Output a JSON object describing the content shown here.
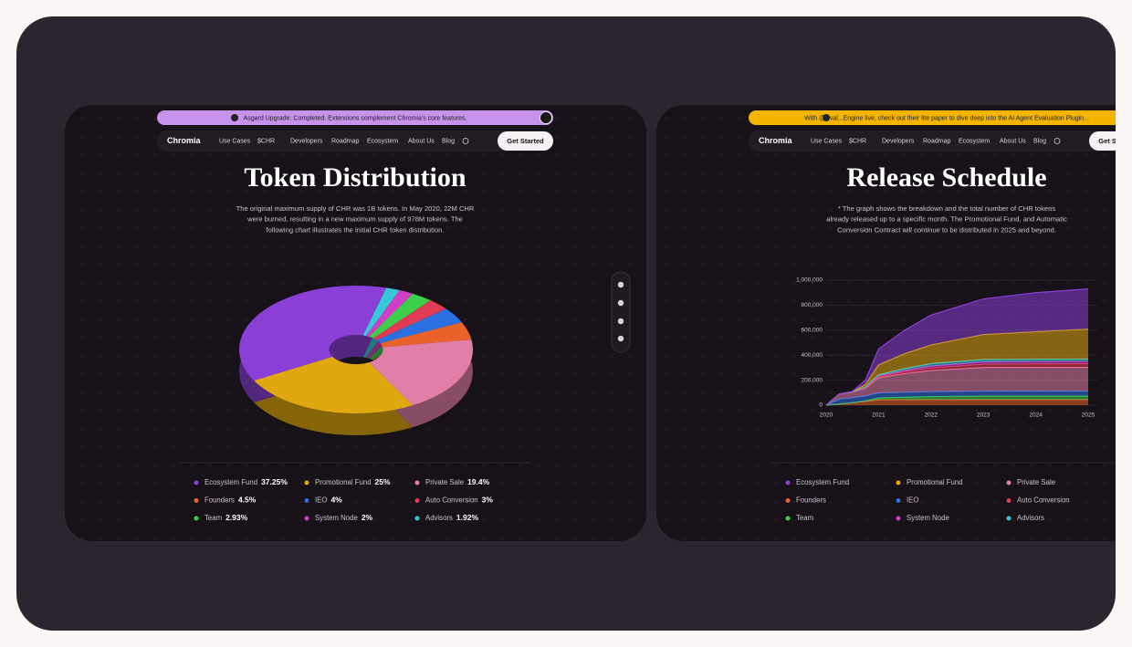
{
  "panels": [
    {
      "banner": "Asgard Upgrade: Completed. Extensions complement Chromia's core features.",
      "banner_color": "#c792ea",
      "nav": {
        "logo": "Chromia",
        "links": [
          "Use Cases",
          "$CHR",
          "Developers",
          "Roadmap",
          "Ecosystem",
          "About Us",
          "Blog"
        ],
        "cta": "Get Started"
      },
      "title": "Token Distribution",
      "description": [
        "The original maximum supply of CHR was 1B tokens. In May 2020, 22M CHR",
        "were burned, resulting in a new maximum supply of 978M tokens. The",
        "following chart illustrates the initial CHR token distribution."
      ],
      "chart": {
        "type": "pie",
        "categories": [
          "Ecosystem Fund",
          "Promotional Fund",
          "Private Sale",
          "Founders",
          "IEO",
          "Auto Conversion",
          "Team",
          "System Node",
          "Advisors"
        ],
        "values": [
          37.25,
          25,
          19.4,
          4.5,
          4,
          3,
          2.93,
          2,
          1.92
        ],
        "value_labels": [
          "37.25%",
          "25%",
          "19.4%",
          "4.5%",
          "4%",
          "3%",
          "2.93%",
          "2%",
          "1.92%"
        ],
        "colors": [
          "#8a3fd6",
          "#e0a810",
          "#e27fa8",
          "#e8622a",
          "#2c6fe0",
          "#e23a55",
          "#3ecf4a",
          "#d23fc7",
          "#36c8d8"
        ]
      }
    },
    {
      "banner": "With @Eval...Engine live, check out their lite paper to dive deep into the AI Agent Evaluation Plugin...",
      "banner_color": "#f4b400",
      "nav": {
        "logo": "Chromia",
        "links": [
          "Use Cases",
          "$CHR",
          "Developers",
          "Roadmap",
          "Ecosystem",
          "About Us",
          "Blog"
        ],
        "cta": "Get Started"
      },
      "title": "Release Schedule",
      "description": [
        "* The graph shows the breakdown and the total number of CHR tokens",
        "already released up to a specific month. The Promotional Fund, and Automatic",
        "Conversion Contract will continue to be distributed in 2025 and beyond."
      ],
      "chart": {
        "type": "area",
        "x": [
          2020,
          2020.25,
          2020.5,
          2020.75,
          2021,
          2021.5,
          2022,
          2023,
          2024,
          2025
        ],
        "xlim": [
          2020,
          2025
        ],
        "xticks": [
          2020,
          2021,
          2022,
          2023,
          2024,
          2025
        ],
        "ylim": [
          0,
          1000000
        ],
        "yticks": [
          0,
          {
            "value": 200000,
            "label": "200,000"
          },
          {
            "value": 400000,
            "label": "400,000"
          },
          {
            "value": 600000,
            "label": "600,000"
          },
          {
            "value": 800000,
            "label": "800,000"
          },
          {
            "value": 1000000,
            "label": "1,000,000"
          }
        ],
        "series": [
          {
            "name": "Ecosystem Fund",
            "color": "#8a3fd6",
            "values": [
              0,
              0,
              2000,
              34000,
              127000,
              187000,
              238000,
              285000,
              312000,
              321000
            ]
          },
          {
            "name": "Promotional Fund",
            "color": "#e0a810",
            "values": [
              0,
              1000,
              2000,
              20000,
              80000,
              120000,
              150000,
              200000,
              220000,
              240000
            ]
          },
          {
            "name": "Private Sale",
            "color": "#e27fa8",
            "values": [
              0,
              40000,
              45000,
              60000,
              120000,
              150000,
              170000,
              190000,
              190000,
              190000
            ]
          },
          {
            "name": "Founders",
            "color": "#e8622a",
            "values": [
              0,
              10000,
              20000,
              30000,
              44000,
              44000,
              44000,
              44000,
              44000,
              44000
            ]
          },
          {
            "name": "IEO",
            "color": "#2c6fe0",
            "values": [
              0,
              39000,
              39000,
              39000,
              39000,
              39000,
              39000,
              39000,
              39000,
              39000
            ]
          },
          {
            "name": "Auto Conversion",
            "color": "#e23a55",
            "values": [
              0,
              0,
              0,
              5000,
              10000,
              15000,
              20000,
              25000,
              28000,
              29000
            ]
          },
          {
            "name": "Team",
            "color": "#3ecf4a",
            "values": [
              0,
              0,
              0,
              5000,
              15000,
              20000,
              25000,
              29000,
              29000,
              29000
            ]
          },
          {
            "name": "System Node",
            "color": "#d23fc7",
            "values": [
              0,
              0,
              0,
              2000,
              5000,
              10000,
              15000,
              19000,
              19000,
              19000
            ]
          },
          {
            "name": "Advisors",
            "color": "#36c8d8",
            "values": [
              0,
              0,
              2000,
              5000,
              10000,
              15000,
              19000,
              19000,
              19000,
              19000
            ]
          }
        ]
      }
    }
  ]
}
